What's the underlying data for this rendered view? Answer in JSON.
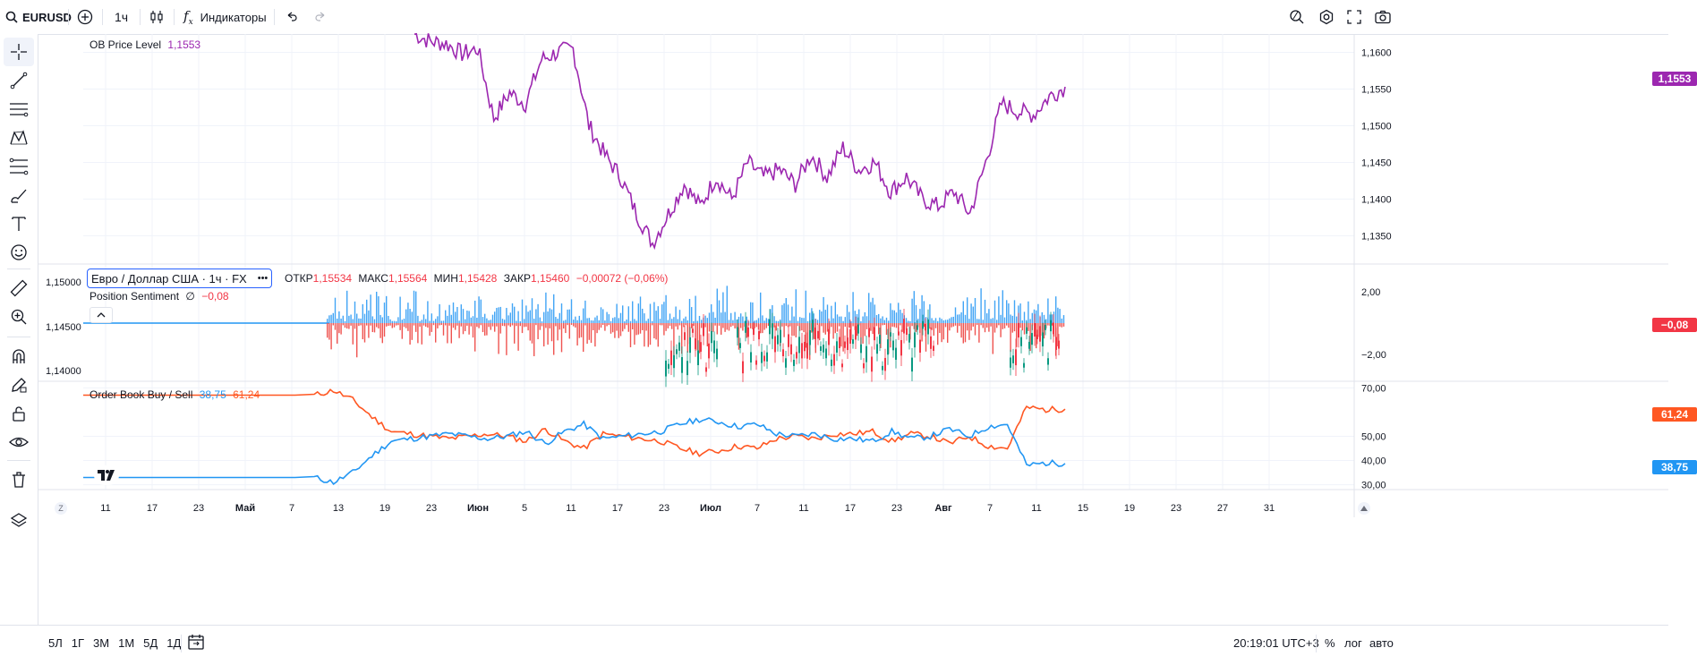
{
  "topbar": {
    "symbol": "EURUSD",
    "interval": "1ч",
    "indicators_label": "Индикаторы"
  },
  "pane1": {
    "indicator_name": "OB Price Level",
    "indicator_value": "1,1553",
    "current_tag": "1,1553",
    "color": "#9c27b0"
  },
  "pane2": {
    "symbol_title": "Евро / Доллар США · 1ч · FX",
    "open_label": "ОТКР",
    "open_value": "1,15534",
    "high_label": "МАКС",
    "high_value": "1,15564",
    "low_label": "МИН",
    "low_value": "1,15428",
    "close_label": "ЗАКР",
    "close_value": "1,15460",
    "change": "−0,00072 (−0,06%)",
    "indicator_name": "Position Sentiment",
    "indicator_symbol": "∅",
    "indicator_value": "−0,08",
    "current_tag": "−0,08",
    "left_scale": [
      "1,15000",
      "1,14500",
      "1,14000"
    ]
  },
  "pane3": {
    "indicator_name": "Order Book Buy / Sell",
    "buy_value": "38,75",
    "sell_value": "61,24",
    "buy_tag": "38,75",
    "sell_tag": "61,24",
    "buy_color": "#2196f3",
    "sell_color": "#ff5722"
  },
  "time_axis": [
    "11",
    "17",
    "23",
    "Май",
    "7",
    "13",
    "19",
    "23",
    "Июн",
    "5",
    "11",
    "17",
    "23",
    "Июл",
    "7",
    "11",
    "17",
    "23",
    "Авг",
    "7",
    "11",
    "15",
    "19",
    "23",
    "27",
    "31"
  ],
  "bottombar": {
    "ranges": [
      "5Л",
      "1Г",
      "3М",
      "1М",
      "5Д",
      "1Д"
    ],
    "clock": "20:19:01 UTC+3",
    "percent": "%",
    "log": "лог",
    "auto": "авто"
  },
  "chart_data": [
    {
      "type": "line",
      "name": "OB Price Level",
      "x_labels": [
        "11",
        "17",
        "23",
        "Май",
        "7",
        "13",
        "19",
        "23",
        "Июн",
        "5",
        "11",
        "17",
        "23",
        "Июл",
        "7",
        "11",
        "17",
        "23",
        "Авг",
        "7"
      ],
      "y_axis_ticks": [
        "1,1600",
        "1,1550",
        "1,1500",
        "1,1450",
        "1,1400",
        "1,1350"
      ],
      "series": [
        {
          "name": "OB Price Level",
          "values": [
            1.1625,
            1.1615,
            1.1612,
            1.1598,
            1.1605,
            1.151,
            1.1545,
            1.153,
            1.159,
            1.16,
            1.1605,
            1.15,
            1.146,
            1.143,
            1.138,
            1.134,
            1.138,
            1.142,
            1.139,
            1.143,
            1.14,
            1.145,
            1.143,
            1.144,
            1.142,
            1.146,
            1.143,
            1.147,
            1.144,
            1.145,
            1.141,
            1.143,
            1.14,
            1.139,
            1.141,
            1.138,
            1.145,
            1.153,
            1.152,
            1.1515,
            1.154,
            1.1553
          ]
        }
      ]
    },
    {
      "type": "bar",
      "name": "Position Sentiment",
      "y_axis_ticks": [
        "2,00",
        "−2,00"
      ],
      "last": -0.08
    },
    {
      "type": "line",
      "name": "Order Book Buy / Sell",
      "y_axis_ticks": [
        "70,00",
        "50,00",
        "40,00",
        "30,00"
      ],
      "series": [
        {
          "name": "Buy",
          "values": [
            33,
            33,
            33,
            33,
            33,
            33,
            33,
            33,
            33,
            33,
            33,
            33,
            33,
            31,
            35,
            42,
            48,
            49,
            50,
            51,
            50,
            49,
            50,
            52,
            47,
            52,
            55,
            49,
            50,
            51,
            52,
            55,
            57,
            56,
            54,
            55,
            51,
            50,
            51,
            49,
            49,
            48,
            52,
            49,
            50,
            53,
            50,
            54,
            55,
            38,
            39,
            38.75
          ]
        },
        {
          "name": "Sell",
          "values": [
            67,
            67,
            67,
            67,
            67,
            67,
            67,
            67,
            67,
            67,
            67,
            67,
            67,
            69,
            65,
            58,
            52,
            51,
            50,
            49,
            50,
            51,
            50,
            48,
            53,
            48,
            45,
            51,
            50,
            49,
            48,
            45,
            43,
            44,
            46,
            45,
            49,
            50,
            49,
            51,
            51,
            52,
            48,
            51,
            50,
            47,
            50,
            46,
            45,
            62,
            61,
            61.24
          ]
        }
      ]
    }
  ]
}
